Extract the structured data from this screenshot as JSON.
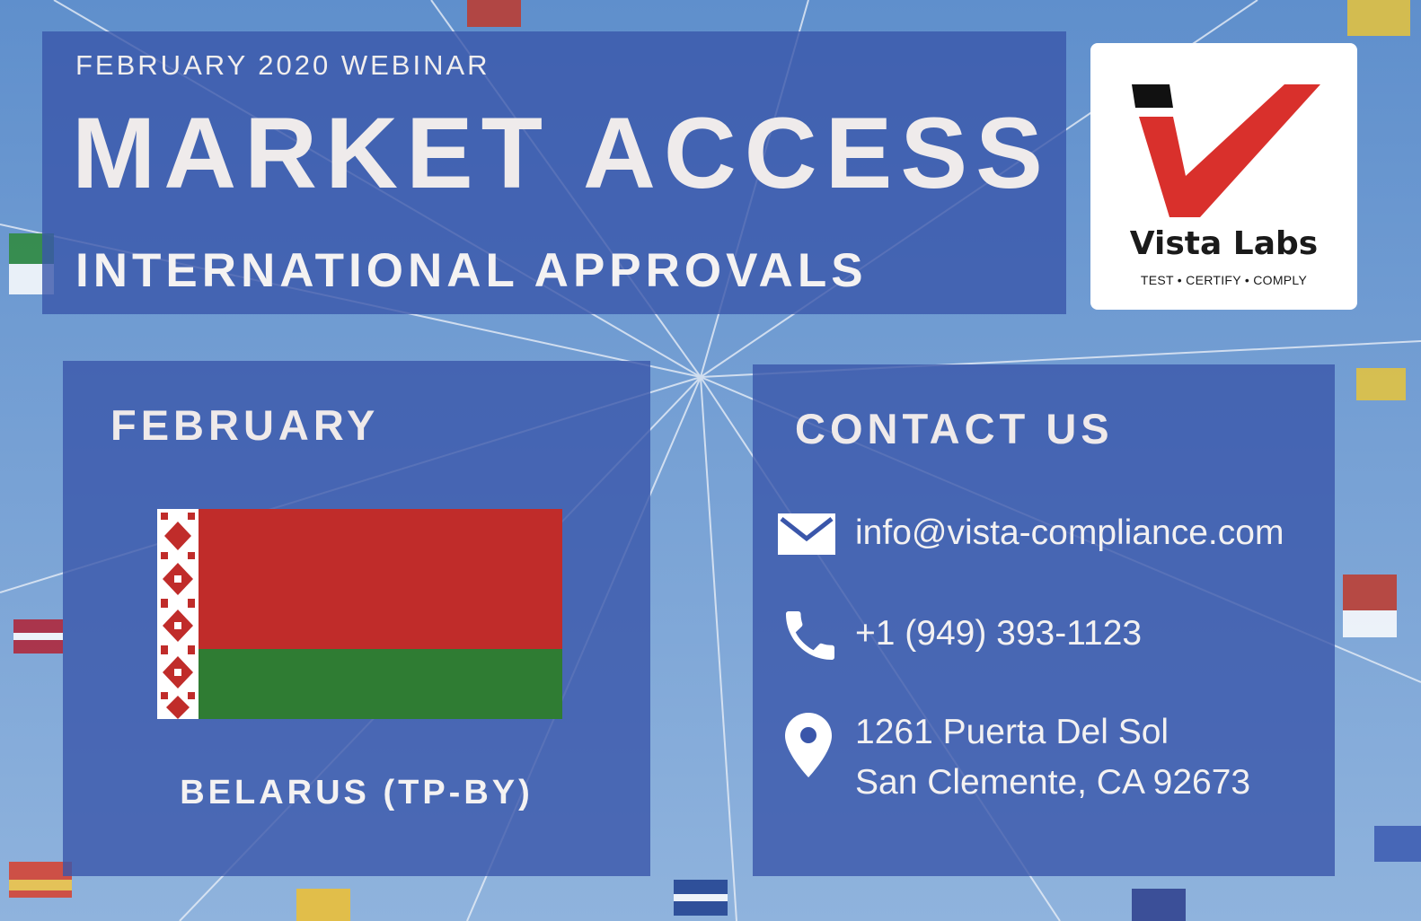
{
  "header": {
    "eyebrow": "FEBRUARY 2020 WEBINAR",
    "title": "MARKET ACCESS",
    "subtitle": "INTERNATIONAL APPROVALS"
  },
  "logo": {
    "name": "Vista Labs",
    "tagline": "TEST • CERTIFY • COMPLY",
    "colors": {
      "red": "#d9302c",
      "black": "#111111"
    }
  },
  "month_section": {
    "heading": "FEBRUARY",
    "country": "BELARUS (TP-BY)",
    "flag": {
      "icon": "belarus-flag",
      "colors": {
        "red": "#c02c2a",
        "green": "#2f7c33",
        "white": "#ffffff"
      }
    }
  },
  "contact": {
    "heading": "CONTACT US",
    "email": {
      "icon": "envelope-icon",
      "text": "info@vista-compliance.com"
    },
    "phone": {
      "icon": "phone-icon",
      "text": "+1 (949) 393-1123"
    },
    "address": {
      "icon": "map-pin-icon",
      "line1": "1261 Puerta Del Sol",
      "line2": "San Clemente, CA 92673"
    }
  },
  "background": {
    "description_icon": "international-flags-background"
  },
  "colors": {
    "panel": "#3a56aa",
    "text": "#f1eeee"
  }
}
